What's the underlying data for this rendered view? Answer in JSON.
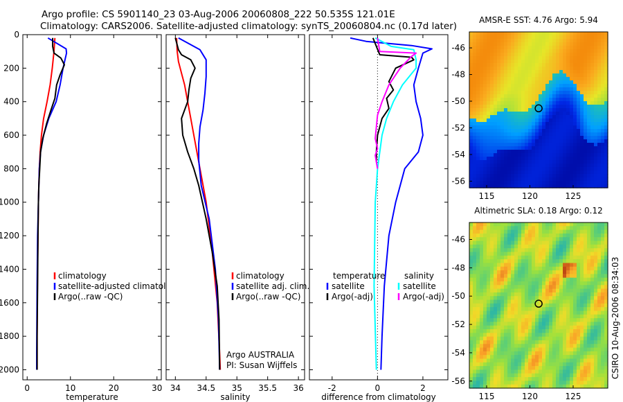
{
  "header": {
    "title_line1": "Argo profile: CS 5901140_23 03-Aug-2006 20060808_222 50.535S 121.01E",
    "title_line2": "Climatology: CARS2006. Satellite-adjusted climatology: synTS_20060804.nc (0.17d later)"
  },
  "footer_stamp": "CSIRO 10-Aug-2006 08:34:03",
  "colors": {
    "climatology": "#ff0000",
    "satellite": "#0000ff",
    "argo": "#000000",
    "salinity_sat": "#00ffff",
    "salinity_argo": "#ff00ff",
    "zero_line": "#000000"
  },
  "chart_data": [
    {
      "id": "temperature",
      "type": "line",
      "xlabel": "temperature",
      "xlim": [
        -1,
        31
      ],
      "xticks": [
        0,
        10,
        20,
        30
      ],
      "ylim": [
        0,
        2060
      ],
      "yticks": [
        0,
        200,
        400,
        600,
        800,
        1000,
        1200,
        1400,
        1600,
        1800,
        2000
      ],
      "y_reversed": true,
      "legend": [
        "climatology",
        "satellite-adjusted climatology",
        "Argo(..raw -QC)"
      ],
      "series": [
        {
          "name": "climatology",
          "color": "#ff0000",
          "x": [
            6.4,
            6.2,
            5.8,
            5.3,
            4.6,
            3.8,
            3.3,
            3.0,
            2.8,
            2.7,
            2.6,
            2.5,
            2.4,
            2.35,
            2.3,
            2.3,
            2.3
          ],
          "y": [
            20,
            100,
            200,
            300,
            400,
            500,
            600,
            700,
            800,
            900,
            1000,
            1200,
            1400,
            1600,
            1800,
            1900,
            2000
          ]
        },
        {
          "name": "satellite-adjusted climatology",
          "color": "#0000ff",
          "x": [
            4.8,
            9.0,
            9.1,
            8.3,
            7.6,
            6.7,
            5.0,
            3.8,
            3.1,
            2.8,
            2.6,
            2.4,
            2.3,
            2.25,
            2.2,
            2.2
          ],
          "y": [
            20,
            85,
            110,
            200,
            300,
            400,
            500,
            600,
            700,
            800,
            1000,
            1200,
            1500,
            1700,
            1900,
            2000
          ]
        },
        {
          "name": "Argo(..raw -QC)",
          "color": "#000000",
          "x": [
            5.9,
            5.9,
            6.2,
            7.8,
            8.6,
            7.6,
            6.8,
            6.4,
            5.5,
            4.5,
            3.6,
            3.1,
            2.9,
            2.7,
            2.6,
            2.5,
            2.4,
            2.3,
            2.3
          ],
          "y": [
            20,
            70,
            110,
            140,
            180,
            240,
            300,
            380,
            450,
            530,
            620,
            700,
            800,
            900,
            1000,
            1200,
            1500,
            1800,
            2000
          ]
        }
      ]
    },
    {
      "id": "salinity",
      "type": "line",
      "xlabel": "salinity",
      "xlim": [
        33.85,
        36.1
      ],
      "xticks": [
        34,
        34.5,
        35,
        35.5,
        36
      ],
      "ylim": [
        0,
        2060
      ],
      "yticks": [
        0,
        200,
        400,
        600,
        800,
        1000,
        1200,
        1400,
        1600,
        1800,
        2000
      ],
      "y_reversed": true,
      "legend": [
        "climatology",
        "satellite adj. clim.",
        "Argo(..raw -QC)"
      ],
      "annotation": [
        "Argo AUSTRALIA",
        "PI: Susan Wijffels"
      ],
      "series": [
        {
          "name": "climatology",
          "color": "#ff0000",
          "x": [
            34.02,
            34.03,
            34.05,
            34.1,
            34.15,
            34.2,
            34.25,
            34.3,
            34.4,
            34.5,
            34.6,
            34.68,
            34.72,
            34.73
          ],
          "y": [
            20,
            100,
            160,
            230,
            300,
            400,
            500,
            600,
            800,
            1000,
            1300,
            1600,
            1900,
            2000
          ]
        },
        {
          "name": "satellite adj. clim.",
          "color": "#0000ff",
          "x": [
            34.05,
            34.4,
            34.5,
            34.5,
            34.48,
            34.45,
            34.4,
            34.38,
            34.38,
            34.42,
            34.55,
            34.65,
            34.7,
            34.72
          ],
          "y": [
            20,
            90,
            150,
            250,
            350,
            450,
            550,
            650,
            750,
            900,
            1100,
            1400,
            1700,
            2000
          ]
        },
        {
          "name": "Argo(..raw -QC)",
          "color": "#000000",
          "x": [
            34.0,
            34.05,
            34.1,
            34.25,
            34.32,
            34.25,
            34.22,
            34.2,
            34.1,
            34.12,
            34.2,
            34.3,
            34.38,
            34.5,
            34.6,
            34.68,
            34.71,
            34.72
          ],
          "y": [
            20,
            90,
            120,
            150,
            200,
            260,
            330,
            400,
            500,
            600,
            700,
            800,
            900,
            1100,
            1300,
            1500,
            1700,
            2000
          ]
        }
      ]
    },
    {
      "id": "difference",
      "type": "line",
      "xlabel": "difference from climatology",
      "xlim": [
        -3,
        3.1
      ],
      "xticks": [
        -2,
        0,
        2
      ],
      "ylim": [
        0,
        2060
      ],
      "yticks": [
        0,
        200,
        400,
        600,
        800,
        1000,
        1200,
        1400,
        1600,
        1800,
        2000
      ],
      "y_reversed": true,
      "legend_columns": [
        {
          "heading": "temperature",
          "items": [
            "satellite",
            "Argo(-adj)"
          ]
        },
        {
          "heading": "salinity",
          "items": [
            "satellite",
            "Argo(-adj)"
          ]
        }
      ],
      "series": [
        {
          "name": "temperature satellite",
          "color": "#0000ff",
          "x": [
            -1.2,
            -0.5,
            1.5,
            2.4,
            2.0,
            1.8,
            1.6,
            1.7,
            1.9,
            2.0,
            1.8,
            1.2,
            0.8,
            0.5,
            0.3,
            0.2,
            0.15
          ],
          "y": [
            20,
            40,
            65,
            85,
            110,
            200,
            300,
            400,
            500,
            600,
            700,
            800,
            1000,
            1200,
            1500,
            1800,
            2000
          ]
        },
        {
          "name": "temperature Argo(-adj)",
          "color": "#000000",
          "x": [
            -0.2,
            0.1,
            1.5,
            1.6,
            0.8,
            0.5,
            0.7,
            0.4,
            0.5,
            0.2,
            0.0,
            -0.05,
            -0.05
          ],
          "y": [
            20,
            120,
            135,
            150,
            200,
            280,
            330,
            380,
            440,
            500,
            600,
            700,
            760
          ]
        },
        {
          "name": "salinity satellite",
          "color": "#00ffff",
          "x": [
            -0.1,
            0.6,
            1.6,
            1.7,
            1.7,
            1.1,
            0.7,
            0.4,
            0.2,
            0.0,
            -0.1,
            -0.15,
            -0.05
          ],
          "y": [
            20,
            70,
            90,
            150,
            200,
            300,
            400,
            500,
            600,
            800,
            1000,
            1500,
            2000
          ]
        },
        {
          "name": "salinity Argo(-adj)",
          "color": "#ff00ff",
          "x": [
            0.0,
            0.1,
            1.7,
            1.5,
            1.0,
            0.5,
            0.2,
            0.0,
            -0.05,
            -0.1,
            0.0,
            -0.1,
            -0.05,
            0.0
          ],
          "y": [
            20,
            100,
            110,
            130,
            200,
            300,
            400,
            480,
            550,
            620,
            680,
            720,
            760,
            800
          ]
        }
      ]
    },
    {
      "id": "sst-map",
      "type": "heatmap",
      "title": "AMSR-E SST: 4.76 Argo: 5.94",
      "xlim": [
        113,
        129
      ],
      "xticks": [
        115,
        120,
        125
      ],
      "ylim": [
        -56.5,
        -44.8
      ],
      "yticks": [
        -46,
        -48,
        -50,
        -52,
        -54,
        -56
      ],
      "marker": {
        "lon": 121.01,
        "lat": -50.535
      }
    },
    {
      "id": "sla-map",
      "type": "heatmap",
      "title": "Altimetric SLA: 0.18 Argo: 0.12",
      "xlim": [
        113,
        129
      ],
      "xticks": [
        115,
        120,
        125
      ],
      "ylim": [
        -56.5,
        -44.8
      ],
      "yticks": [
        -46,
        -48,
        -50,
        -52,
        -54,
        -56
      ],
      "marker": {
        "lon": 121.01,
        "lat": -50.535
      }
    }
  ]
}
